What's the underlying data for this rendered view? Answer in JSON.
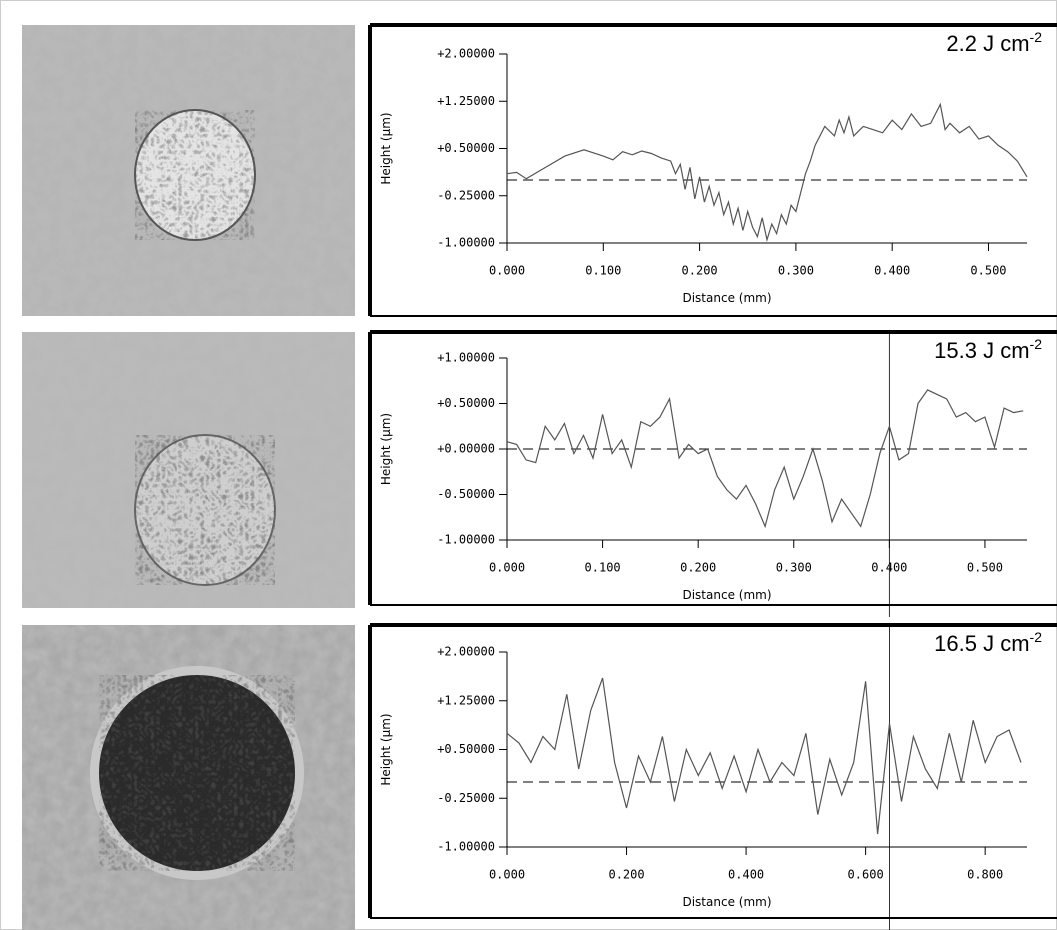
{
  "chart_data": [
    {
      "type": "line",
      "annotation": "2.2 J cm",
      "annotation_sup": "-2",
      "y_label": "Height (µm)",
      "x_label": "Distance (mm)",
      "color": "#555555",
      "reference_line": 0,
      "xlim": [
        0,
        0.54
      ],
      "ylim": [
        -1,
        2
      ],
      "xticks": [
        {
          "value": 0,
          "label": "0.000"
        },
        {
          "value": 0.1,
          "label": "0.100"
        },
        {
          "value": 0.2,
          "label": "0.200"
        },
        {
          "value": 0.3,
          "label": "0.300"
        },
        {
          "value": 0.4,
          "label": "0.400"
        },
        {
          "value": 0.5,
          "label": "0.500"
        }
      ],
      "yticks": [
        {
          "value": 2,
          "label": "+2.00000"
        },
        {
          "value": 1.25,
          "label": "+1.25000"
        },
        {
          "value": 0.5,
          "label": "+0.50000"
        },
        {
          "value": -0.25,
          "label": "-0.25000"
        },
        {
          "value": -1,
          "label": "-1.00000"
        }
      ],
      "x": [
        0,
        0.01,
        0.02,
        0.04,
        0.06,
        0.08,
        0.1,
        0.11,
        0.12,
        0.13,
        0.14,
        0.15,
        0.16,
        0.17,
        0.175,
        0.18,
        0.185,
        0.19,
        0.195,
        0.2,
        0.205,
        0.21,
        0.215,
        0.22,
        0.225,
        0.23,
        0.235,
        0.24,
        0.245,
        0.25,
        0.255,
        0.26,
        0.265,
        0.27,
        0.275,
        0.28,
        0.285,
        0.29,
        0.295,
        0.3,
        0.305,
        0.31,
        0.315,
        0.32,
        0.33,
        0.34,
        0.345,
        0.35,
        0.355,
        0.36,
        0.37,
        0.38,
        0.39,
        0.4,
        0.41,
        0.42,
        0.43,
        0.44,
        0.45,
        0.455,
        0.46,
        0.47,
        0.48,
        0.49,
        0.5,
        0.51,
        0.52,
        0.53,
        0.54
      ],
      "values": [
        0.1,
        0.12,
        0.02,
        0.2,
        0.38,
        0.48,
        0.38,
        0.32,
        0.45,
        0.4,
        0.46,
        0.42,
        0.35,
        0.3,
        0.1,
        0.25,
        -0.15,
        0.2,
        -0.3,
        0.05,
        -0.35,
        -0.1,
        -0.4,
        -0.2,
        -0.55,
        -0.35,
        -0.7,
        -0.45,
        -0.8,
        -0.5,
        -0.75,
        -0.9,
        -0.6,
        -0.95,
        -0.7,
        -0.85,
        -0.55,
        -0.7,
        -0.4,
        -0.5,
        -0.2,
        0.1,
        0.3,
        0.55,
        0.85,
        0.7,
        0.95,
        0.75,
        1.0,
        0.7,
        0.85,
        0.8,
        0.75,
        0.95,
        0.8,
        1.05,
        0.85,
        0.9,
        1.2,
        0.8,
        0.9,
        0.75,
        0.85,
        0.65,
        0.7,
        0.55,
        0.45,
        0.3,
        0.05
      ]
    },
    {
      "type": "line",
      "annotation": "15.3 J cm",
      "annotation_sup": "-2",
      "y_label": "Height (µm)",
      "x_label": "Distance (mm)",
      "color": "#555555",
      "reference_line": 0,
      "cursor_x": 0.4,
      "xlim": [
        0,
        0.544
      ],
      "ylim": [
        -1,
        1
      ],
      "xticks": [
        {
          "value": 0,
          "label": "0.000"
        },
        {
          "value": 0.1,
          "label": "0.100"
        },
        {
          "value": 0.2,
          "label": "0.200"
        },
        {
          "value": 0.3,
          "label": "0.300"
        },
        {
          "value": 0.4,
          "label": "0.400"
        },
        {
          "value": 0.5,
          "label": "0.500"
        }
      ],
      "yticks": [
        {
          "value": 1,
          "label": "+1.00000"
        },
        {
          "value": 0.5,
          "label": "+0.50000"
        },
        {
          "value": 0,
          "label": "+0.00000"
        },
        {
          "value": -0.5,
          "label": "-0.50000"
        },
        {
          "value": -1,
          "label": "-1.00000"
        }
      ],
      "x": [
        0,
        0.01,
        0.02,
        0.03,
        0.04,
        0.05,
        0.06,
        0.07,
        0.08,
        0.09,
        0.1,
        0.11,
        0.12,
        0.13,
        0.14,
        0.15,
        0.16,
        0.17,
        0.18,
        0.19,
        0.2,
        0.21,
        0.22,
        0.23,
        0.24,
        0.25,
        0.26,
        0.27,
        0.28,
        0.29,
        0.3,
        0.31,
        0.32,
        0.33,
        0.34,
        0.35,
        0.36,
        0.37,
        0.38,
        0.39,
        0.4,
        0.41,
        0.42,
        0.43,
        0.44,
        0.45,
        0.46,
        0.47,
        0.48,
        0.49,
        0.5,
        0.51,
        0.52,
        0.53,
        0.54
      ],
      "values": [
        0.08,
        0.05,
        -0.12,
        -0.15,
        0.25,
        0.1,
        0.28,
        -0.05,
        0.15,
        -0.1,
        0.38,
        -0.05,
        0.1,
        -0.2,
        0.3,
        0.25,
        0.35,
        0.55,
        -0.1,
        0.05,
        -0.05,
        0.0,
        -0.3,
        -0.45,
        -0.55,
        -0.4,
        -0.6,
        -0.85,
        -0.45,
        -0.2,
        -0.55,
        -0.3,
        0.0,
        -0.35,
        -0.8,
        -0.55,
        -0.7,
        -0.85,
        -0.5,
        -0.05,
        0.25,
        -0.12,
        -0.05,
        0.5,
        0.65,
        0.6,
        0.55,
        0.35,
        0.4,
        0.3,
        0.35,
        0.02,
        0.45,
        0.4,
        0.42
      ]
    },
    {
      "type": "line",
      "annotation": "16.5 J cm",
      "annotation_sup": "-2",
      "y_label": "Height (µm)",
      "x_label": "Distance (mm)",
      "color": "#555555",
      "reference_line": 0,
      "cursor_x": 0.64,
      "xlim": [
        0,
        0.87
      ],
      "ylim": [
        -1,
        2
      ],
      "xticks": [
        {
          "value": 0,
          "label": "0.000"
        },
        {
          "value": 0.2,
          "label": "0.200"
        },
        {
          "value": 0.4,
          "label": "0.400"
        },
        {
          "value": 0.6,
          "label": "0.600"
        },
        {
          "value": 0.8,
          "label": "0.800"
        }
      ],
      "yticks": [
        {
          "value": 2,
          "label": "+2.00000"
        },
        {
          "value": 1.25,
          "label": "+1.25000"
        },
        {
          "value": 0.5,
          "label": "+0.50000"
        },
        {
          "value": -0.25,
          "label": "-0.25000"
        },
        {
          "value": -1,
          "label": "-1.00000"
        }
      ],
      "x": [
        0,
        0.02,
        0.04,
        0.06,
        0.08,
        0.1,
        0.12,
        0.14,
        0.16,
        0.18,
        0.2,
        0.22,
        0.24,
        0.26,
        0.28,
        0.3,
        0.32,
        0.34,
        0.36,
        0.38,
        0.4,
        0.42,
        0.44,
        0.46,
        0.48,
        0.5,
        0.52,
        0.54,
        0.56,
        0.58,
        0.6,
        0.62,
        0.64,
        0.66,
        0.68,
        0.7,
        0.72,
        0.74,
        0.76,
        0.78,
        0.8,
        0.82,
        0.84,
        0.86
      ],
      "values": [
        0.75,
        0.6,
        0.3,
        0.7,
        0.5,
        1.35,
        0.2,
        1.1,
        1.6,
        0.3,
        -0.4,
        0.4,
        0.0,
        0.7,
        -0.3,
        0.5,
        0.1,
        0.45,
        -0.1,
        0.4,
        -0.15,
        0.5,
        0.0,
        0.3,
        0.1,
        0.75,
        -0.5,
        0.35,
        -0.2,
        0.3,
        1.55,
        -0.8,
        0.9,
        -0.3,
        0.7,
        0.2,
        -0.1,
        0.75,
        0.0,
        0.95,
        0.3,
        0.7,
        0.8,
        0.3
      ]
    }
  ]
}
